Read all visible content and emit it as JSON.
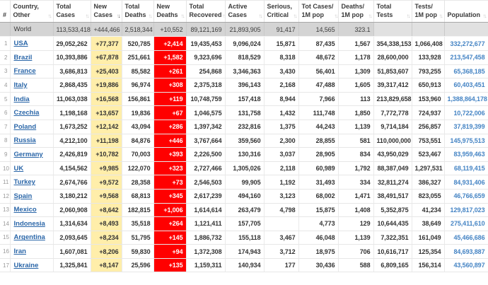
{
  "colors": {
    "new_cases_bg": "#FFEEAA",
    "new_deaths_bg": "#FF0000",
    "country_link": "#2a66a8",
    "population_link": "#4584c4",
    "world_row_bg": "#d4d4d4"
  },
  "table": {
    "columns": [
      {
        "id": "rank",
        "label_lines": [
          "#"
        ],
        "sortable": false
      },
      {
        "id": "country",
        "label_lines": [
          "Country,",
          "Other"
        ],
        "sortable": true
      },
      {
        "id": "total_cases",
        "label_lines": [
          "Total",
          "Cases"
        ],
        "sortable": true
      },
      {
        "id": "new_cases",
        "label_lines": [
          "New",
          "Cases"
        ],
        "sortable": true,
        "sort": "desc"
      },
      {
        "id": "total_deaths",
        "label_lines": [
          "Total",
          "Deaths"
        ],
        "sortable": true
      },
      {
        "id": "new_deaths",
        "label_lines": [
          "New",
          "Deaths"
        ],
        "sortable": true
      },
      {
        "id": "total_recovered",
        "label_lines": [
          "Total",
          "Recovered"
        ],
        "sortable": true
      },
      {
        "id": "active_cases",
        "label_lines": [
          "Active",
          "Cases"
        ],
        "sortable": true
      },
      {
        "id": "serious_critical",
        "label_lines": [
          "Serious,",
          "Critical"
        ],
        "sortable": true
      },
      {
        "id": "cases_per_1m",
        "label_lines": [
          "Tot Cases/",
          "1M pop"
        ],
        "sortable": true
      },
      {
        "id": "deaths_per_1m",
        "label_lines": [
          "Deaths/",
          "1M pop"
        ],
        "sortable": true
      },
      {
        "id": "total_tests",
        "label_lines": [
          "Total",
          "Tests"
        ],
        "sortable": true
      },
      {
        "id": "tests_per_1m",
        "label_lines": [
          "Tests/",
          "1M pop"
        ],
        "sortable": true
      },
      {
        "id": "population",
        "label_lines": [
          "Population"
        ],
        "sortable": true
      }
    ],
    "world_row": {
      "rank": "",
      "country": "World",
      "total_cases": "113,533,418",
      "new_cases": "+444,466",
      "total_deaths": "2,518,344",
      "new_deaths": "+10,552",
      "total_recovered": "89,121,169",
      "active_cases": "21,893,905",
      "serious_critical": "91,417",
      "cases_per_1m": "14,565",
      "deaths_per_1m": "323.1",
      "total_tests": "",
      "tests_per_1m": "",
      "population": ""
    },
    "rows": [
      {
        "rank": "1",
        "country": "USA",
        "total_cases": "29,052,262",
        "new_cases": "+77,377",
        "total_deaths": "520,785",
        "new_deaths": "+2,414",
        "total_recovered": "19,435,453",
        "active_cases": "9,096,024",
        "serious_critical": "15,871",
        "cases_per_1m": "87,435",
        "deaths_per_1m": "1,567",
        "total_tests": "354,338,153",
        "tests_per_1m": "1,066,408",
        "population": "332,272,677"
      },
      {
        "rank": "2",
        "country": "Brazil",
        "total_cases": "10,393,886",
        "new_cases": "+67,878",
        "total_deaths": "251,661",
        "new_deaths": "+1,582",
        "total_recovered": "9,323,696",
        "active_cases": "818,529",
        "serious_critical": "8,318",
        "cases_per_1m": "48,672",
        "deaths_per_1m": "1,178",
        "total_tests": "28,600,000",
        "tests_per_1m": "133,928",
        "population": "213,547,458"
      },
      {
        "rank": "3",
        "country": "France",
        "total_cases": "3,686,813",
        "new_cases": "+25,403",
        "total_deaths": "85,582",
        "new_deaths": "+261",
        "total_recovered": "254,868",
        "active_cases": "3,346,363",
        "serious_critical": "3,430",
        "cases_per_1m": "56,401",
        "deaths_per_1m": "1,309",
        "total_tests": "51,853,607",
        "tests_per_1m": "793,255",
        "population": "65,368,185"
      },
      {
        "rank": "4",
        "country": "Italy",
        "total_cases": "2,868,435",
        "new_cases": "+19,886",
        "total_deaths": "96,974",
        "new_deaths": "+308",
        "total_recovered": "2,375,318",
        "active_cases": "396,143",
        "serious_critical": "2,168",
        "cases_per_1m": "47,488",
        "deaths_per_1m": "1,605",
        "total_tests": "39,317,412",
        "tests_per_1m": "650,913",
        "population": "60,403,451"
      },
      {
        "rank": "5",
        "country": "India",
        "total_cases": "11,063,038",
        "new_cases": "+16,568",
        "total_deaths": "156,861",
        "new_deaths": "+119",
        "total_recovered": "10,748,759",
        "active_cases": "157,418",
        "serious_critical": "8,944",
        "cases_per_1m": "7,966",
        "deaths_per_1m": "113",
        "total_tests": "213,829,658",
        "tests_per_1m": "153,960",
        "population": "1,388,864,178"
      },
      {
        "rank": "6",
        "country": "Czechia",
        "total_cases": "1,198,168",
        "new_cases": "+13,657",
        "total_deaths": "19,836",
        "new_deaths": "+67",
        "total_recovered": "1,046,575",
        "active_cases": "131,758",
        "serious_critical": "1,432",
        "cases_per_1m": "111,748",
        "deaths_per_1m": "1,850",
        "total_tests": "7,772,778",
        "tests_per_1m": "724,937",
        "population": "10,722,006"
      },
      {
        "rank": "7",
        "country": "Poland",
        "total_cases": "1,673,252",
        "new_cases": "+12,142",
        "total_deaths": "43,094",
        "new_deaths": "+286",
        "total_recovered": "1,397,342",
        "active_cases": "232,816",
        "serious_critical": "1,375",
        "cases_per_1m": "44,243",
        "deaths_per_1m": "1,139",
        "total_tests": "9,714,184",
        "tests_per_1m": "256,857",
        "population": "37,819,399"
      },
      {
        "rank": "8",
        "country": "Russia",
        "total_cases": "4,212,100",
        "new_cases": "+11,198",
        "total_deaths": "84,876",
        "new_deaths": "+446",
        "total_recovered": "3,767,664",
        "active_cases": "359,560",
        "serious_critical": "2,300",
        "cases_per_1m": "28,855",
        "deaths_per_1m": "581",
        "total_tests": "110,000,000",
        "tests_per_1m": "753,551",
        "population": "145,975,513"
      },
      {
        "rank": "9",
        "country": "Germany",
        "total_cases": "2,426,819",
        "new_cases": "+10,782",
        "total_deaths": "70,003",
        "new_deaths": "+393",
        "total_recovered": "2,226,500",
        "active_cases": "130,316",
        "serious_critical": "3,037",
        "cases_per_1m": "28,905",
        "deaths_per_1m": "834",
        "total_tests": "43,950,029",
        "tests_per_1m": "523,467",
        "population": "83,959,463"
      },
      {
        "rank": "10",
        "country": "UK",
        "total_cases": "4,154,562",
        "new_cases": "+9,985",
        "total_deaths": "122,070",
        "new_deaths": "+323",
        "total_recovered": "2,727,466",
        "active_cases": "1,305,026",
        "serious_critical": "2,118",
        "cases_per_1m": "60,989",
        "deaths_per_1m": "1,792",
        "total_tests": "88,387,049",
        "tests_per_1m": "1,297,531",
        "population": "68,119,415"
      },
      {
        "rank": "11",
        "country": "Turkey",
        "total_cases": "2,674,766",
        "new_cases": "+9,572",
        "total_deaths": "28,358",
        "new_deaths": "+73",
        "total_recovered": "2,546,503",
        "active_cases": "99,905",
        "serious_critical": "1,192",
        "cases_per_1m": "31,493",
        "deaths_per_1m": "334",
        "total_tests": "32,811,274",
        "tests_per_1m": "386,327",
        "population": "84,931,406"
      },
      {
        "rank": "12",
        "country": "Spain",
        "total_cases": "3,180,212",
        "new_cases": "+9,568",
        "total_deaths": "68,813",
        "new_deaths": "+345",
        "total_recovered": "2,617,239",
        "active_cases": "494,160",
        "serious_critical": "3,123",
        "cases_per_1m": "68,002",
        "deaths_per_1m": "1,471",
        "total_tests": "38,491,517",
        "tests_per_1m": "823,055",
        "population": "46,766,659"
      },
      {
        "rank": "13",
        "country": "Mexico",
        "total_cases": "2,060,908",
        "new_cases": "+8,642",
        "total_deaths": "182,815",
        "new_deaths": "+1,006",
        "total_recovered": "1,614,614",
        "active_cases": "263,479",
        "serious_critical": "4,798",
        "cases_per_1m": "15,875",
        "deaths_per_1m": "1,408",
        "total_tests": "5,352,875",
        "tests_per_1m": "41,234",
        "population": "129,817,023"
      },
      {
        "rank": "14",
        "country": "Indonesia",
        "total_cases": "1,314,634",
        "new_cases": "+8,493",
        "total_deaths": "35,518",
        "new_deaths": "+264",
        "total_recovered": "1,121,411",
        "active_cases": "157,705",
        "serious_critical": "",
        "cases_per_1m": "4,773",
        "deaths_per_1m": "129",
        "total_tests": "10,644,435",
        "tests_per_1m": "38,649",
        "population": "275,411,610"
      },
      {
        "rank": "15",
        "country": "Argentina",
        "total_cases": "2,093,645",
        "new_cases": "+8,234",
        "total_deaths": "51,795",
        "new_deaths": "+145",
        "total_recovered": "1,886,732",
        "active_cases": "155,118",
        "serious_critical": "3,467",
        "cases_per_1m": "46,048",
        "deaths_per_1m": "1,139",
        "total_tests": "7,322,351",
        "tests_per_1m": "161,049",
        "population": "45,466,686"
      },
      {
        "rank": "16",
        "country": "Iran",
        "total_cases": "1,607,081",
        "new_cases": "+8,206",
        "total_deaths": "59,830",
        "new_deaths": "+94",
        "total_recovered": "1,372,308",
        "active_cases": "174,943",
        "serious_critical": "3,712",
        "cases_per_1m": "18,975",
        "deaths_per_1m": "706",
        "total_tests": "10,616,717",
        "tests_per_1m": "125,354",
        "population": "84,693,887"
      },
      {
        "rank": "17",
        "country": "Ukraine",
        "total_cases": "1,325,841",
        "new_cases": "+8,147",
        "total_deaths": "25,596",
        "new_deaths": "+135",
        "total_recovered": "1,159,311",
        "active_cases": "140,934",
        "serious_critical": "177",
        "cases_per_1m": "30,436",
        "deaths_per_1m": "588",
        "total_tests": "6,809,165",
        "tests_per_1m": "156,314",
        "population": "43,560,897"
      }
    ]
  }
}
